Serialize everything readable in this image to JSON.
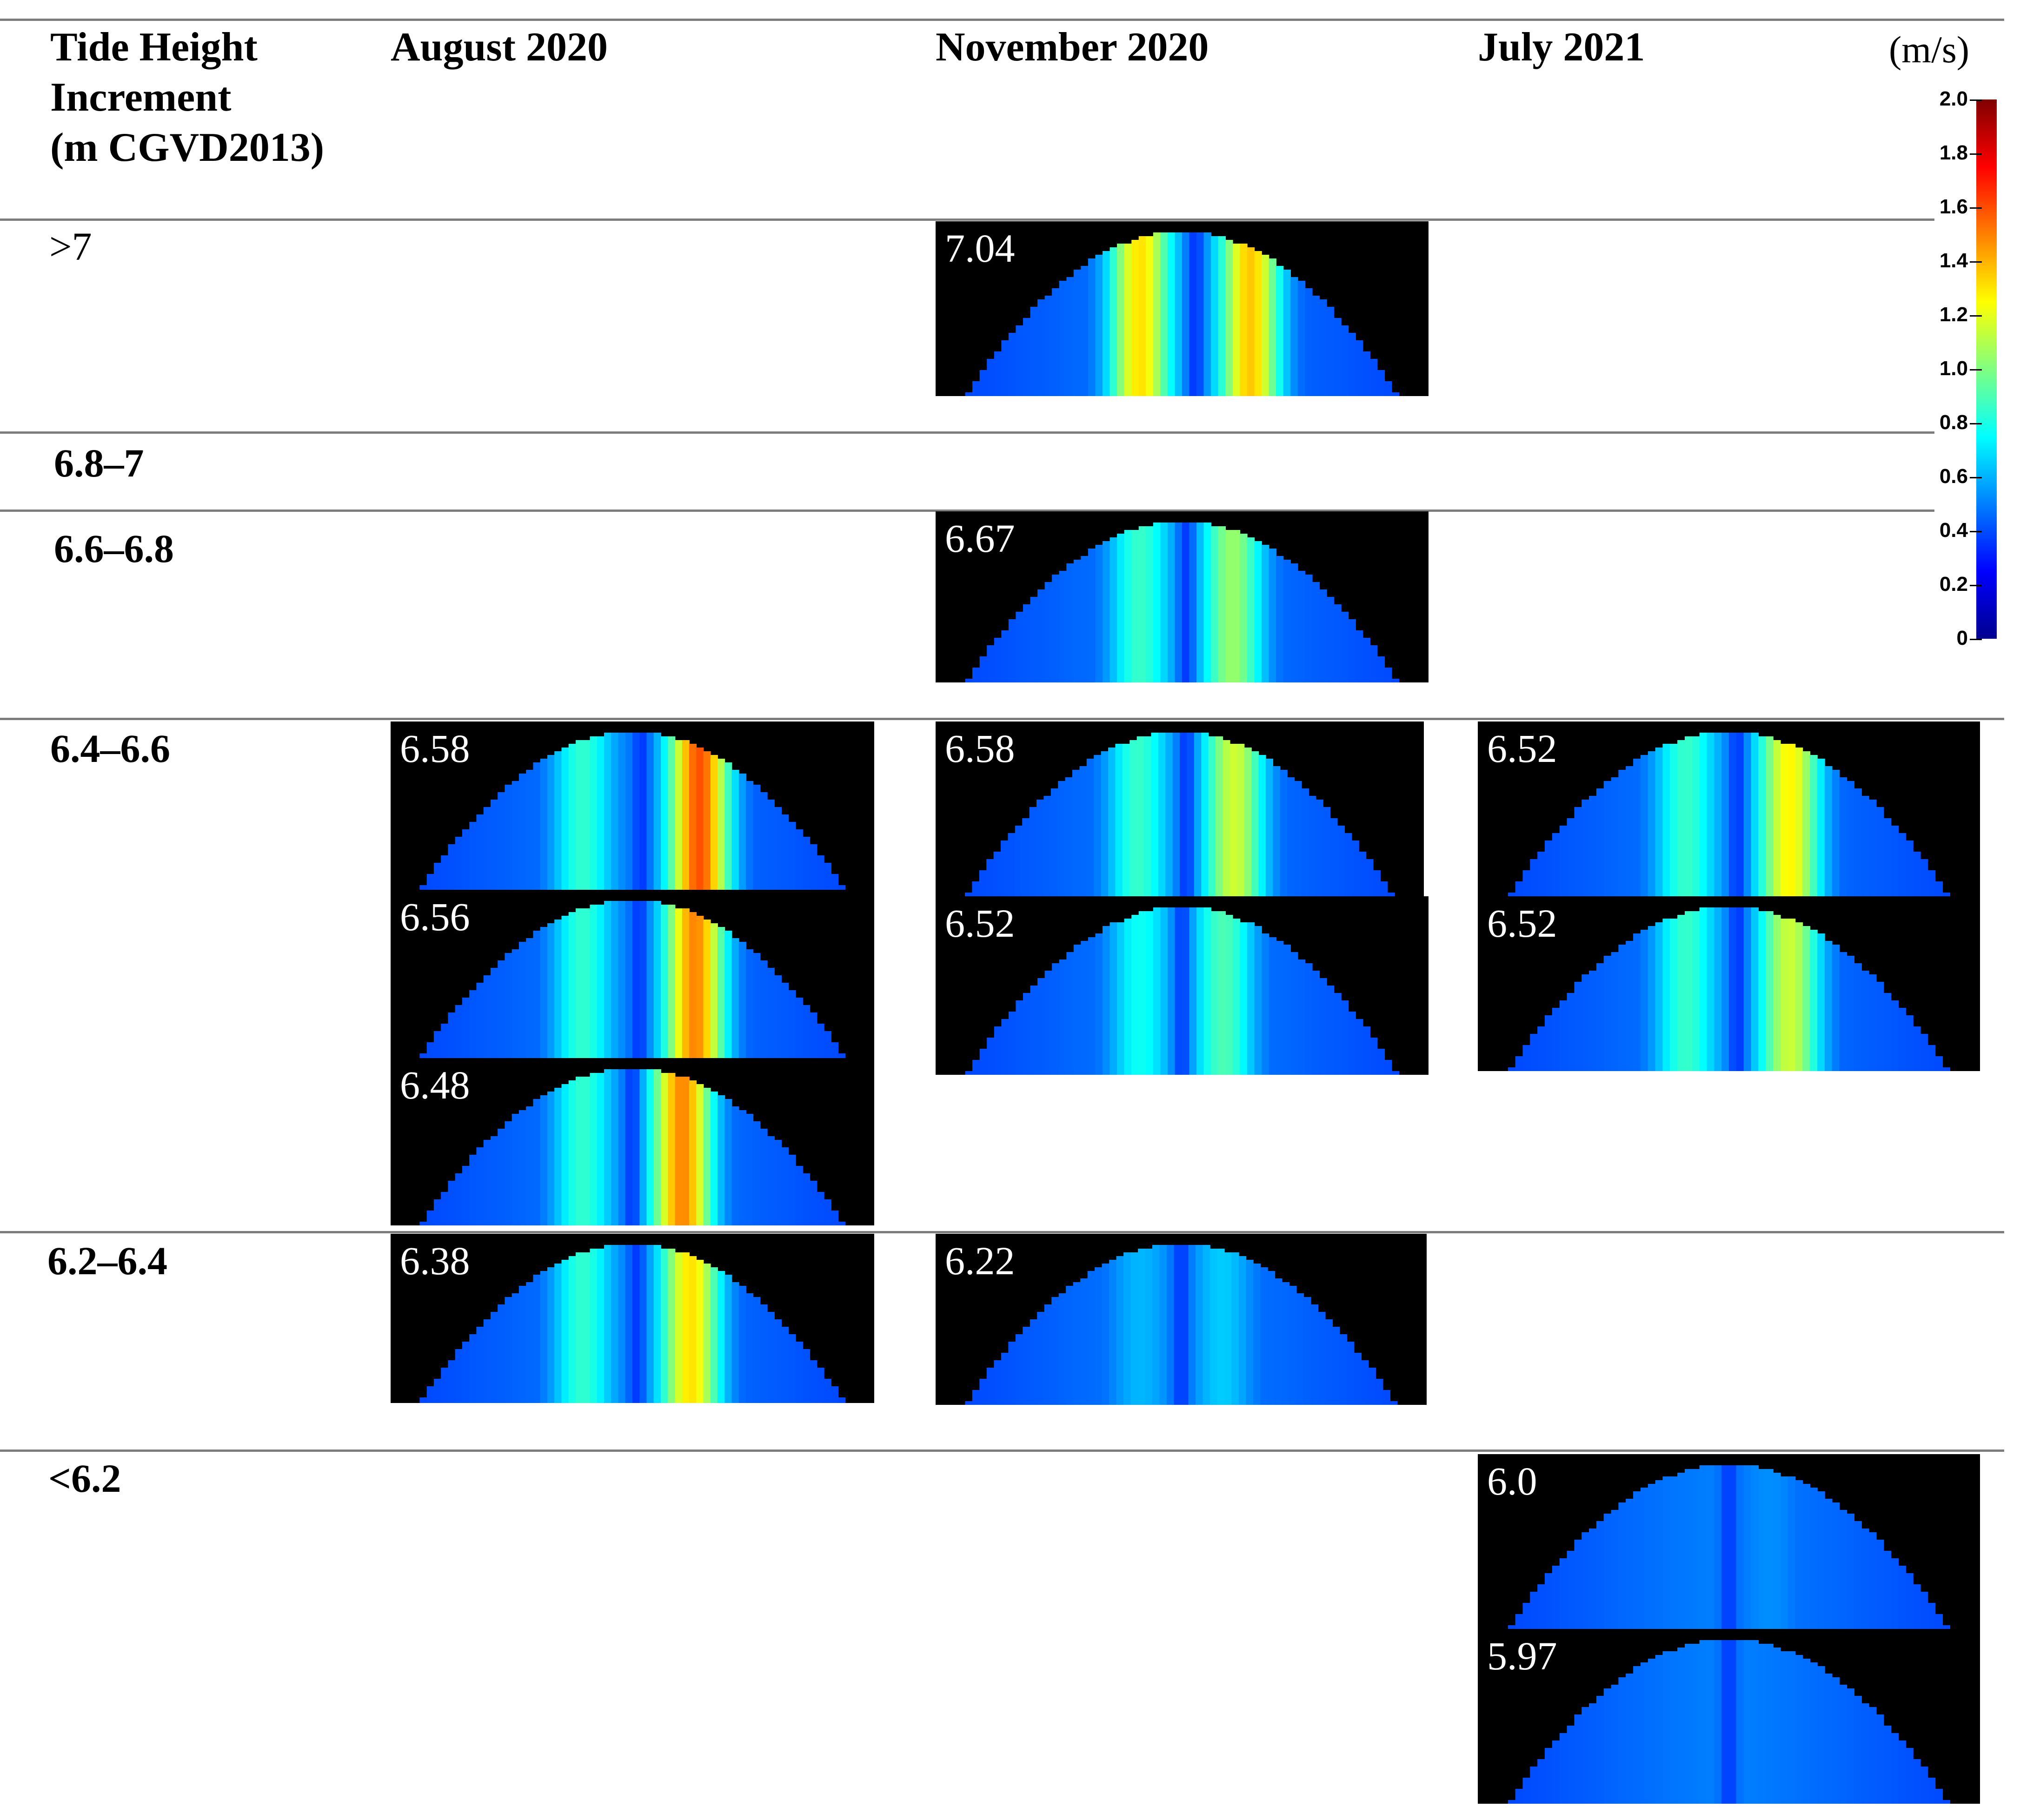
{
  "header": {
    "col1_lines": [
      "Tide Height",
      "Increment",
      "(m CGVD2013)"
    ],
    "col2": "August 2020",
    "col3": "November 2020",
    "col4": "July 2021"
  },
  "rows": [
    {
      "label": ">7"
    },
    {
      "label": "6.8–7"
    },
    {
      "label": "6.6–6.8"
    },
    {
      "label": "6.4–6.6"
    },
    {
      "label": "6.2–6.4"
    },
    {
      "label": "<6.2"
    }
  ],
  "panels": [
    {
      "id": "nov-704",
      "row": ">7",
      "column": "November 2020",
      "label": "7.04",
      "jets": [
        {
          "x": 0.4,
          "v": 1.3
        },
        {
          "x": 0.66,
          "v": 1.45
        }
      ]
    },
    {
      "id": "nov-667",
      "row": "6.6–6.8",
      "column": "November 2020",
      "label": "6.67",
      "jets": [
        {
          "x": 0.4,
          "v": 0.75
        },
        {
          "x": 0.62,
          "v": 1.0
        }
      ]
    },
    {
      "id": "aug-658",
      "row": "6.4–6.6",
      "column": "August 2020",
      "label": "6.58",
      "jets": [
        {
          "x": 0.38,
          "v": 0.75
        },
        {
          "x": 0.66,
          "v": 1.75
        }
      ]
    },
    {
      "id": "aug-656",
      "row": "6.4–6.6",
      "column": "August 2020",
      "label": "6.56",
      "jets": [
        {
          "x": 0.38,
          "v": 0.75
        },
        {
          "x": 0.65,
          "v": 1.6
        }
      ]
    },
    {
      "id": "aug-648",
      "row": "6.4–6.6",
      "column": "August 2020",
      "label": "6.48",
      "jets": [
        {
          "x": 0.38,
          "v": 0.75
        },
        {
          "x": 0.62,
          "v": 1.55
        }
      ]
    },
    {
      "id": "nov-658",
      "row": "6.4–6.6",
      "column": "November 2020",
      "label": "6.58",
      "jets": [
        {
          "x": 0.4,
          "v": 0.75
        },
        {
          "x": 0.63,
          "v": 1.15
        }
      ]
    },
    {
      "id": "nov-652",
      "row": "6.4–6.6",
      "column": "November 2020",
      "label": "6.52",
      "jets": [
        {
          "x": 0.4,
          "v": 0.65
        },
        {
          "x": 0.6,
          "v": 0.8
        }
      ]
    },
    {
      "id": "jul-652a",
      "row": "6.4–6.6",
      "column": "July 2021",
      "label": "6.52",
      "jets": [
        {
          "x": 0.4,
          "v": 0.75
        },
        {
          "x": 0.64,
          "v": 1.3
        }
      ]
    },
    {
      "id": "jul-652b",
      "row": "6.4–6.6",
      "column": "July 2021",
      "label": "6.52",
      "jets": [
        {
          "x": 0.4,
          "v": 0.75
        },
        {
          "x": 0.64,
          "v": 1.15
        }
      ]
    },
    {
      "id": "aug-638",
      "row": "6.2–6.4",
      "column": "August 2020",
      "label": "6.38",
      "jets": [
        {
          "x": 0.38,
          "v": 0.75
        },
        {
          "x": 0.64,
          "v": 1.35
        }
      ]
    },
    {
      "id": "nov-622",
      "row": "6.2–6.4",
      "column": "November 2020",
      "label": "6.22",
      "jets": [
        {
          "x": 0.4,
          "v": 0.45
        },
        {
          "x": 0.6,
          "v": 0.5
        }
      ]
    },
    {
      "id": "jul-600",
      "row": "<6.2",
      "column": "July 2021",
      "label": "6.0",
      "jets": [
        {
          "x": 0.4,
          "v": 0.3
        },
        {
          "x": 0.6,
          "v": 0.35
        }
      ]
    },
    {
      "id": "jul-597",
      "row": "<6.2",
      "column": "July 2021",
      "label": "5.97",
      "jets": [
        {
          "x": 0.4,
          "v": 0.3
        },
        {
          "x": 0.6,
          "v": 0.3
        }
      ]
    }
  ],
  "colorbar": {
    "unit": "(m/s)",
    "ticks": [
      "2.0",
      "1.8",
      "1.6",
      "1.4",
      "1.2",
      "1.0",
      "0.8",
      "0.6",
      "0.4",
      "0.2",
      "0"
    ],
    "min": 0,
    "max": 2.0,
    "colormap": "jet"
  }
}
